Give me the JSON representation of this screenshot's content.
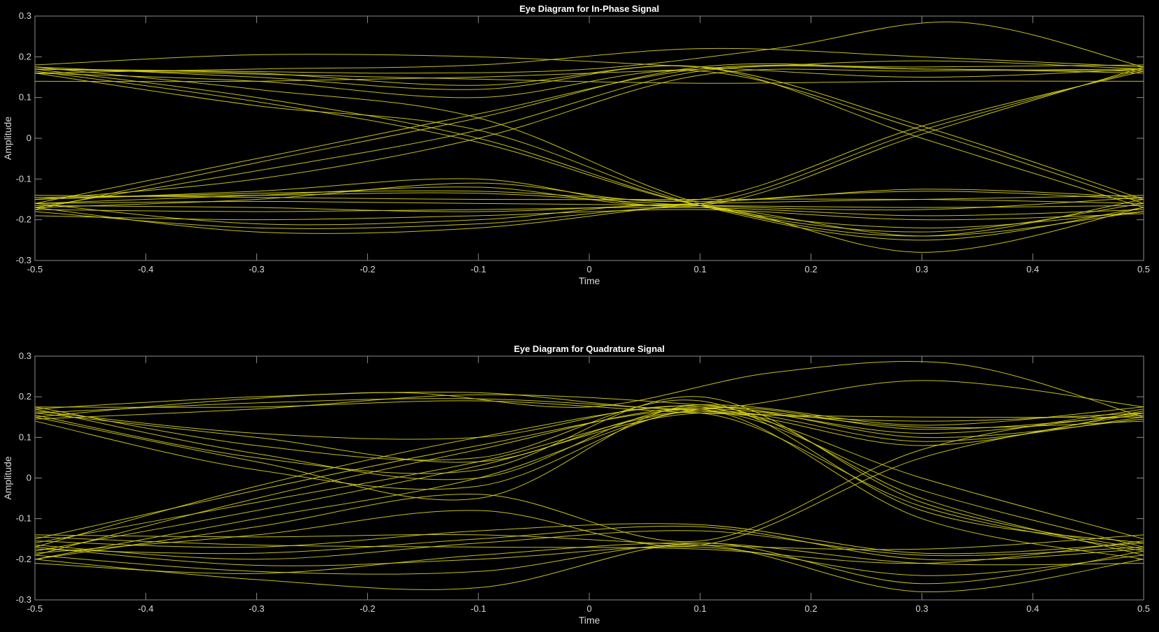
{
  "colors": {
    "background": "#000000",
    "axes": "#8c8c8c",
    "text": "#d9d9d9",
    "title": "#ffffff",
    "trace": "#d9d417"
  },
  "chart_data": [
    {
      "type": "line",
      "title": "Eye Diagram for In-Phase Signal",
      "xlabel": "Time",
      "ylabel": "Amplitude",
      "xlim": [
        -0.5,
        0.5
      ],
      "ylim": [
        -0.3,
        0.3
      ],
      "xticks": [
        -0.5,
        -0.4,
        -0.3,
        -0.2,
        -0.1,
        0,
        0.1,
        0.2,
        0.3,
        0.4,
        0.5
      ],
      "xtick_labels": [
        "-0.5",
        "-0.4",
        "-0.3",
        "-0.2",
        "-0.1",
        "0",
        "0.1",
        "0.2",
        "0.3",
        "0.4",
        "0.5"
      ],
      "yticks": [
        -0.3,
        -0.2,
        -0.1,
        0,
        0.1,
        0.2,
        0.3
      ],
      "ytick_labels": [
        "-0.3",
        "-0.2",
        "-0.1",
        "0",
        "0.1",
        "0.2",
        "0.3"
      ],
      "grid": false,
      "series": [
        {
          "values": [
            0.17,
            0.1575,
            0.145,
            0.135,
            0.14,
            0.14
          ]
        },
        {
          "values": [
            0.18,
            0.205,
            0.2,
            0.175,
            0.15,
            0.17
          ]
        },
        {
          "values": [
            0.17,
            0.165,
            0.16,
            0.17,
            0.22,
            0.285,
            0.175
          ]
        },
        {
          "values": [
            0.16,
            0.17,
            0.18,
            0.22,
            0.2,
            0.175
          ]
        },
        {
          "values": [
            0.14,
            0.14,
            0.15,
            0.17,
            0.19,
            0.17
          ]
        },
        {
          "values": [
            0.17,
            0.1,
            0.0,
            -0.165,
            -0.23,
            -0.16
          ]
        },
        {
          "values": [
            0.16,
            0.08,
            0.02,
            -0.165,
            -0.25,
            -0.17
          ]
        },
        {
          "values": [
            0.175,
            0.12,
            0.05,
            -0.16,
            -0.24,
            -0.15
          ]
        },
        {
          "values": [
            0.165,
            0.09,
            -0.01,
            -0.165,
            -0.22,
            -0.18
          ]
        },
        {
          "values": [
            0.175,
            0.15,
            0.12,
            0.175,
            0.0,
            -0.17
          ]
        },
        {
          "values": [
            0.16,
            0.14,
            0.1,
            0.165,
            0.02,
            -0.16
          ]
        },
        {
          "values": [
            0.17,
            0.16,
            0.13,
            0.175,
            0.03,
            -0.15
          ]
        },
        {
          "values": [
            -0.17,
            -0.08,
            0.02,
            0.165,
            0.17,
            0.16
          ]
        },
        {
          "values": [
            -0.16,
            -0.05,
            0.06,
            0.17,
            0.175,
            0.18
          ]
        },
        {
          "values": [
            -0.15,
            -0.1,
            0.0,
            0.155,
            0.165,
            0.17
          ]
        },
        {
          "values": [
            -0.175,
            -0.06,
            0.05,
            0.175,
            0.17,
            0.165
          ]
        },
        {
          "values": [
            -0.16,
            -0.14,
            -0.12,
            -0.16,
            0.02,
            0.17
          ]
        },
        {
          "values": [
            -0.17,
            -0.15,
            -0.11,
            -0.15,
            0.03,
            0.165
          ]
        },
        {
          "values": [
            -0.15,
            -0.13,
            -0.1,
            -0.165,
            0.01,
            0.175
          ]
        },
        {
          "values": [
            -0.17,
            -0.23,
            -0.22,
            -0.16,
            -0.13,
            -0.15
          ]
        },
        {
          "values": [
            -0.16,
            -0.21,
            -0.2,
            -0.165,
            -0.28,
            -0.17
          ]
        },
        {
          "values": [
            -0.18,
            -0.22,
            -0.21,
            -0.17,
            -0.24,
            -0.18
          ]
        },
        {
          "values": [
            -0.15,
            -0.135,
            -0.13,
            -0.155,
            -0.125,
            -0.145
          ]
        },
        {
          "values": [
            -0.14,
            -0.145,
            -0.15,
            -0.15,
            -0.15,
            -0.16
          ]
        },
        {
          "values": [
            -0.16,
            -0.155,
            -0.16,
            -0.165,
            -0.17,
            -0.165
          ]
        },
        {
          "values": [
            -0.175,
            -0.18,
            -0.175,
            -0.17,
            -0.19,
            -0.175
          ]
        },
        {
          "values": [
            -0.19,
            -0.2,
            -0.19,
            -0.175,
            -0.2,
            -0.185
          ]
        },
        {
          "values": [
            -0.145,
            -0.14,
            -0.135,
            -0.165,
            -0.175,
            -0.145
          ]
        },
        {
          "values": [
            -0.165,
            -0.17,
            -0.18,
            -0.16,
            -0.15,
            -0.14
          ]
        }
      ]
    },
    {
      "type": "line",
      "title": "Eye Diagram for Quadrature Signal",
      "xlabel": "Time",
      "ylabel": "Amplitude",
      "xlim": [
        -0.5,
        0.5
      ],
      "ylim": [
        -0.3,
        0.3
      ],
      "xticks": [
        -0.5,
        -0.4,
        -0.3,
        -0.2,
        -0.1,
        0,
        0.1,
        0.2,
        0.3,
        0.4,
        0.5
      ],
      "xtick_labels": [
        "-0.5",
        "-0.4",
        "-0.3",
        "-0.2",
        "-0.1",
        "0",
        "0.1",
        "0.2",
        "0.3",
        "0.4",
        "0.5"
      ],
      "yticks": [
        -0.3,
        -0.2,
        -0.1,
        0,
        0.1,
        0.2,
        0.3
      ],
      "ytick_labels": [
        "-0.3",
        "-0.2",
        "-0.1",
        "0",
        "0.1",
        "0.2",
        "0.3"
      ],
      "grid": false,
      "series": [
        {
          "values": [
            0.15,
            0.19,
            0.21,
            0.175,
            0.26,
            0.28,
            0.15
          ]
        },
        {
          "values": [
            0.17,
            0.2,
            0.21,
            0.17,
            0.24,
            0.175
          ]
        },
        {
          "values": [
            0.16,
            0.185,
            0.195,
            0.165,
            0.14,
            0.16
          ]
        },
        {
          "values": [
            0.145,
            0.17,
            0.205,
            0.18,
            0.125,
            0.14
          ]
        },
        {
          "values": [
            0.175,
            0.175,
            0.19,
            0.16,
            0.15,
            0.15
          ]
        },
        {
          "values": [
            0.17,
            0.06,
            0.0,
            0.17,
            -0.1,
            -0.2
          ]
        },
        {
          "values": [
            0.15,
            0.04,
            -0.05,
            0.18,
            -0.05,
            -0.19
          ]
        },
        {
          "values": [
            0.16,
            0.1,
            0.04,
            0.16,
            -0.07,
            -0.18
          ]
        },
        {
          "values": [
            0.14,
            0.02,
            -0.02,
            0.165,
            -0.03,
            -0.17
          ]
        },
        {
          "values": [
            0.175,
            0.08,
            0.05,
            0.19,
            -0.08,
            -0.16
          ]
        },
        {
          "values": [
            0.165,
            0.11,
            0.1,
            0.175,
            0.0,
            -0.15
          ]
        },
        {
          "values": [
            0.155,
            0.05,
            0.02,
            0.2,
            -0.06,
            -0.175
          ]
        },
        {
          "values": [
            -0.2,
            -0.1,
            0.0,
            0.17,
            0.12,
            0.155
          ]
        },
        {
          "values": [
            -0.19,
            -0.05,
            0.07,
            0.175,
            0.1,
            0.145
          ]
        },
        {
          "values": [
            -0.18,
            -0.08,
            0.03,
            0.16,
            0.08,
            0.165
          ]
        },
        {
          "values": [
            -0.17,
            -0.02,
            0.1,
            0.18,
            0.13,
            0.175
          ]
        },
        {
          "values": [
            -0.16,
            -0.06,
            0.04,
            0.165,
            0.09,
            0.15
          ]
        },
        {
          "values": [
            -0.15,
            -0.03,
            0.08,
            0.17,
            0.11,
            0.16
          ]
        },
        {
          "values": [
            -0.2,
            -0.12,
            -0.04,
            -0.155,
            0.07,
            0.17
          ]
        },
        {
          "values": [
            -0.185,
            -0.14,
            -0.08,
            -0.165,
            0.05,
            0.16
          ]
        },
        {
          "values": [
            -0.2,
            -0.25,
            -0.27,
            -0.16,
            -0.26,
            -0.18
          ]
        },
        {
          "values": [
            -0.19,
            -0.23,
            -0.23,
            -0.165,
            -0.28,
            -0.2
          ]
        },
        {
          "values": [
            -0.17,
            -0.215,
            -0.2,
            -0.17,
            -0.24,
            -0.19
          ]
        },
        {
          "values": [
            -0.21,
            -0.235,
            -0.19,
            -0.16,
            -0.21,
            -0.21
          ]
        },
        {
          "values": [
            -0.14,
            -0.145,
            -0.14,
            -0.165,
            -0.175,
            -0.14
          ]
        },
        {
          "values": [
            -0.155,
            -0.17,
            -0.13,
            -0.115,
            -0.185,
            -0.16
          ]
        },
        {
          "values": [
            -0.175,
            -0.185,
            -0.15,
            -0.12,
            -0.2,
            -0.175
          ]
        },
        {
          "values": [
            -0.165,
            -0.2,
            -0.16,
            -0.13,
            -0.19,
            -0.17
          ]
        },
        {
          "values": [
            -0.145,
            -0.165,
            -0.17,
            -0.175,
            -0.21,
            -0.155
          ]
        }
      ]
    }
  ]
}
